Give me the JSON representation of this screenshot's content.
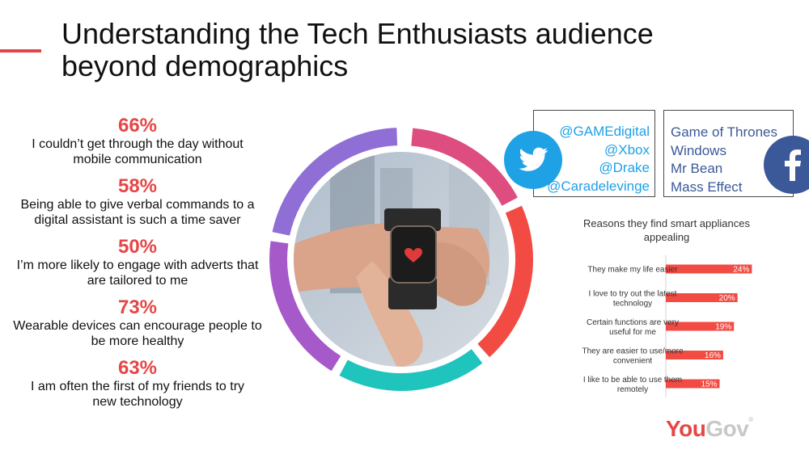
{
  "slide": {
    "title_line1": "Understanding the Tech Enthusiasts audience",
    "title_line2": "beyond demographics"
  },
  "stats": [
    {
      "pct": "66%",
      "line1": "I couldn’t get through the day without",
      "line2": "mobile communication"
    },
    {
      "pct": "58%",
      "line1": "Being able to give verbal commands to a",
      "line2": "digital assistant is such a time saver"
    },
    {
      "pct": "50%",
      "line1": "I’m more likely to engage with adverts that",
      "line2": "are tailored to me"
    },
    {
      "pct": "73%",
      "line1": "Wearable devices can encourage people to",
      "line2": "be more healthy"
    },
    {
      "pct": "63%",
      "line1": "I am often the first of my friends to try",
      "line2": "new technology"
    }
  ],
  "twitter": {
    "icon": "twitter-bird-icon",
    "color": "#1fa1e6",
    "handles": [
      "@GAMEdigital",
      "@Xbox",
      "@Drake",
      "@Caradelevinge"
    ]
  },
  "facebook": {
    "icon": "facebook-f-icon",
    "color": "#3b5998",
    "likes": [
      "Game of Thrones",
      "Windows",
      "Mr Bean",
      "Mass Effect"
    ]
  },
  "ring_colors": [
    "#de4d7f",
    "#f24b43",
    "#1fc4bd",
    "#a65ac9",
    "#8f6ed6"
  ],
  "chart_data": {
    "type": "bar",
    "orientation": "horizontal",
    "title": "Reasons they find smart appliances appealing",
    "categories": [
      [
        "They make my life easier"
      ],
      [
        "I love to try out the latest",
        "technology"
      ],
      [
        "Certain functions are very",
        "useful for me"
      ],
      [
        "They are easier to use/more",
        "convenient"
      ],
      [
        "I like to be able to use them",
        "remotely"
      ]
    ],
    "values": [
      24,
      20,
      19,
      16,
      15
    ],
    "value_labels": [
      "24%",
      "20%",
      "19%",
      "16%",
      "15%"
    ],
    "bar_color": "#f24b43",
    "xlim": [
      0,
      30
    ]
  },
  "brand": {
    "part1": "You",
    "part2": "Gov",
    "mark": "®"
  }
}
